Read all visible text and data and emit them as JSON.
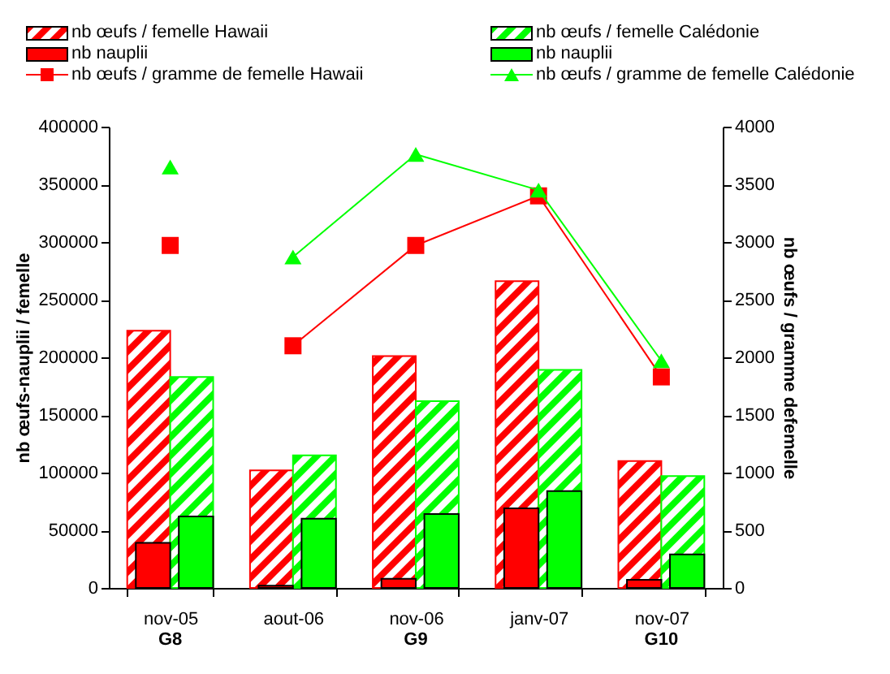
{
  "chart_data": {
    "type": "bar",
    "categories": [
      "nov-05",
      "aout-06",
      "nov-06",
      "janv-07",
      "nov-07"
    ],
    "ylabel": "nb œufs-nauplii / femelle",
    "y2label": "nb œufs / gramme defemelle",
    "ylim": [
      0,
      400000
    ],
    "yticks": [
      0,
      50000,
      100000,
      150000,
      200000,
      250000,
      300000,
      350000,
      400000
    ],
    "y2lim": [
      0,
      4000
    ],
    "y2ticks": [
      0,
      500,
      1000,
      1500,
      2000,
      2500,
      3000,
      3500,
      4000
    ],
    "legend": "top",
    "series": [
      {
        "name": "nb œufs / femelle Hawaii",
        "color": "#ff0000",
        "values": [
          223000,
          102000,
          201000,
          266000,
          110000
        ]
      },
      {
        "name": "nb œufs / femelle Calédonie",
        "color": "#00ff00",
        "values": [
          183000,
          115000,
          162000,
          189000,
          97000
        ]
      },
      {
        "name": "nb nauplii",
        "color": "#ff0000",
        "values": [
          39000,
          2000,
          8000,
          69000,
          7000
        ]
      },
      {
        "name": "nb nauplii",
        "color": "#00ff00",
        "values": [
          62000,
          60000,
          64000,
          84000,
          29000
        ]
      },
      {
        "name": "nb œufs / gramme de femelle Hawaii",
        "type": "line",
        "axis": "y2",
        "marker": "square",
        "color": "#ff0000",
        "values": [
          null,
          2100,
          2970,
          3400,
          1830
        ]
      },
      {
        "name": "nb œufs / gramme de femelle Calédonie",
        "type": "line",
        "axis": "y2",
        "marker": "triangle",
        "color": "#00ff00",
        "values": [
          null,
          2870,
          3760,
          3450,
          1970
        ]
      },
      {
        "type": "scatter",
        "axis": "y2",
        "marker": "square",
        "color": "#ff0000",
        "values": [
          2970,
          null,
          null,
          null,
          null
        ]
      },
      {
        "type": "scatter",
        "axis": "y2",
        "marker": "triangle",
        "color": "#00ff00",
        "values": [
          3650,
          null,
          null,
          null,
          null
        ]
      }
    ],
    "annotations": [
      "G8",
      "G9",
      "G10"
    ]
  }
}
